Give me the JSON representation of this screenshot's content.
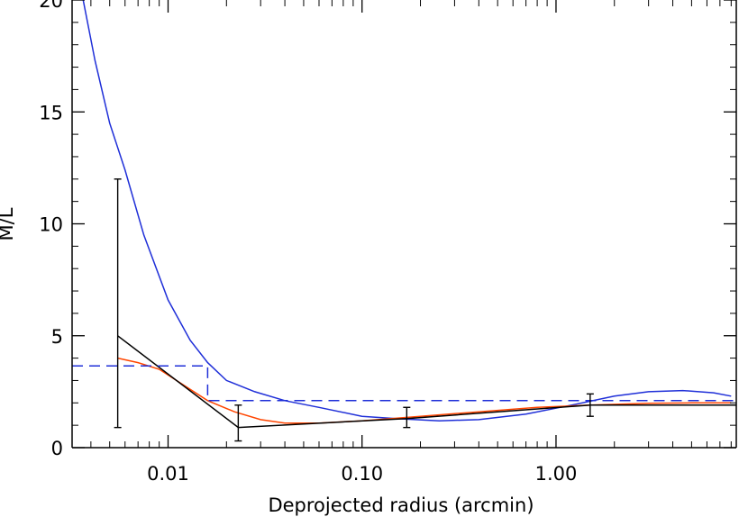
{
  "chart_data": {
    "type": "line",
    "title": "",
    "xlabel": "Deprojected radius (arcmin)",
    "ylabel": "M/L",
    "xscale": "log",
    "xlim": [
      0.0032,
      8.5
    ],
    "ylim": [
      0,
      20
    ],
    "grid": false,
    "legend": "none",
    "x_ticks": [
      {
        "value": 0.01,
        "label": "0.01"
      },
      {
        "value": 0.1,
        "label": "0.10"
      },
      {
        "value": 1,
        "label": "1.00"
      }
    ],
    "y_ticks": [
      {
        "value": 0,
        "label": "0"
      },
      {
        "value": 5,
        "label": "5"
      },
      {
        "value": 10,
        "label": "10"
      },
      {
        "value": 15,
        "label": "15"
      },
      {
        "value": 20,
        "label": "20"
      }
    ],
    "series": [
      {
        "style": "solid",
        "color": "#1f2fd8",
        "points": [
          [
            0.0035,
            20.8
          ],
          [
            0.0042,
            17.3
          ],
          [
            0.005,
            14.5
          ],
          [
            0.006,
            12.4
          ],
          [
            0.0075,
            9.5
          ],
          [
            0.01,
            6.6
          ],
          [
            0.013,
            4.8
          ],
          [
            0.016,
            3.8
          ],
          [
            0.02,
            3.0
          ],
          [
            0.028,
            2.5
          ],
          [
            0.04,
            2.1
          ],
          [
            0.06,
            1.8
          ],
          [
            0.1,
            1.4
          ],
          [
            0.15,
            1.3
          ],
          [
            0.25,
            1.2
          ],
          [
            0.4,
            1.25
          ],
          [
            0.7,
            1.5
          ],
          [
            1.2,
            1.9
          ],
          [
            2.0,
            2.3
          ],
          [
            3.0,
            2.5
          ],
          [
            4.5,
            2.55
          ],
          [
            6.5,
            2.45
          ],
          [
            8.0,
            2.3
          ]
        ]
      },
      {
        "style": "solid",
        "color": "#ff4500",
        "points": [
          [
            0.0055,
            4.0
          ],
          [
            0.007,
            3.8
          ],
          [
            0.009,
            3.5
          ],
          [
            0.012,
            2.8
          ],
          [
            0.016,
            2.1
          ],
          [
            0.022,
            1.6
          ],
          [
            0.03,
            1.25
          ],
          [
            0.04,
            1.1
          ],
          [
            0.06,
            1.1
          ],
          [
            0.1,
            1.2
          ],
          [
            0.2,
            1.4
          ],
          [
            0.4,
            1.6
          ],
          [
            0.8,
            1.8
          ],
          [
            1.5,
            1.9
          ],
          [
            3,
            1.98
          ],
          [
            5,
            2.0
          ],
          [
            8,
            2.0
          ]
        ]
      },
      {
        "style": "solid",
        "color": "#000000",
        "points": [
          [
            0.0055,
            5.0
          ],
          [
            0.023,
            0.9
          ],
          [
            0.17,
            1.3
          ],
          [
            1.5,
            1.9
          ],
          [
            8.5,
            1.9
          ]
        ]
      },
      {
        "style": "dashed",
        "color": "#1f2fd8",
        "points": [
          [
            0.0032,
            3.65
          ],
          [
            0.016,
            3.65
          ],
          [
            0.016,
            2.1
          ],
          [
            8.5,
            2.1
          ]
        ]
      }
    ],
    "error_bars": [
      {
        "x": 0.0055,
        "y": 5.0,
        "low": 0.9,
        "high": 12.0
      },
      {
        "x": 0.023,
        "y": 0.9,
        "low": 0.3,
        "high": 1.9
      },
      {
        "x": 0.17,
        "y": 1.3,
        "low": 0.9,
        "high": 1.8
      },
      {
        "x": 1.5,
        "y": 1.9,
        "low": 1.4,
        "high": 2.4
      }
    ]
  }
}
